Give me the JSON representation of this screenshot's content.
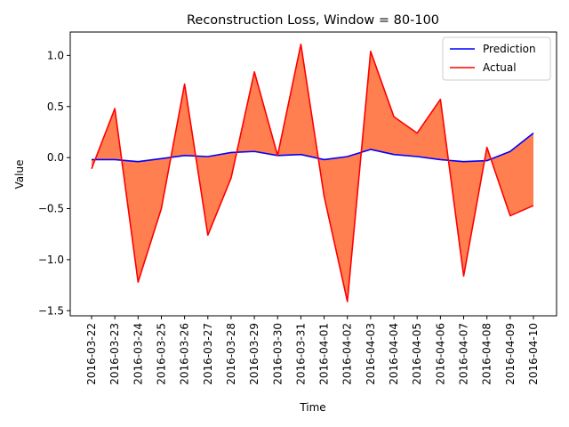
{
  "chart_data": {
    "type": "line",
    "title": "Reconstruction Loss, Window = 80-100",
    "xlabel": "Time",
    "ylabel": "Value",
    "ylim": [
      -1.55,
      1.23
    ],
    "yticks": [
      -1.5,
      -1.0,
      -0.5,
      0.0,
      0.5,
      1.0
    ],
    "ytick_labels": [
      "−1.5",
      "−1.0",
      "−0.5",
      "0.0",
      "0.5",
      "1.0"
    ],
    "x": [
      "2016-03-22",
      "2016-03-23",
      "2016-03-24",
      "2016-03-25",
      "2016-03-26",
      "2016-03-27",
      "2016-03-28",
      "2016-03-29",
      "2016-03-30",
      "2016-03-31",
      "2016-04-01",
      "2016-04-02",
      "2016-04-03",
      "2016-04-04",
      "2016-04-05",
      "2016-04-06",
      "2016-04-07",
      "2016-04-08",
      "2016-04-09",
      "2016-04-10"
    ],
    "series": [
      {
        "name": "Prediction",
        "color": "#0000ff",
        "values": [
          -0.02,
          -0.02,
          -0.04,
          -0.01,
          0.02,
          0.01,
          0.05,
          0.06,
          0.02,
          0.03,
          -0.02,
          0.01,
          0.08,
          0.03,
          0.01,
          -0.02,
          -0.04,
          -0.03,
          0.06,
          0.24
        ]
      },
      {
        "name": "Actual",
        "color": "#ff0000",
        "values": [
          -0.11,
          0.48,
          -1.22,
          -0.5,
          0.72,
          -0.76,
          -0.2,
          0.84,
          0.02,
          1.11,
          -0.38,
          -1.41,
          1.04,
          0.4,
          0.24,
          0.57,
          -1.16,
          0.1,
          -0.57,
          -0.47
        ]
      }
    ],
    "fill_between": {
      "color": "#ff7f50",
      "between": [
        "Prediction",
        "Actual"
      ]
    },
    "legend": "top-right",
    "grid": false
  }
}
